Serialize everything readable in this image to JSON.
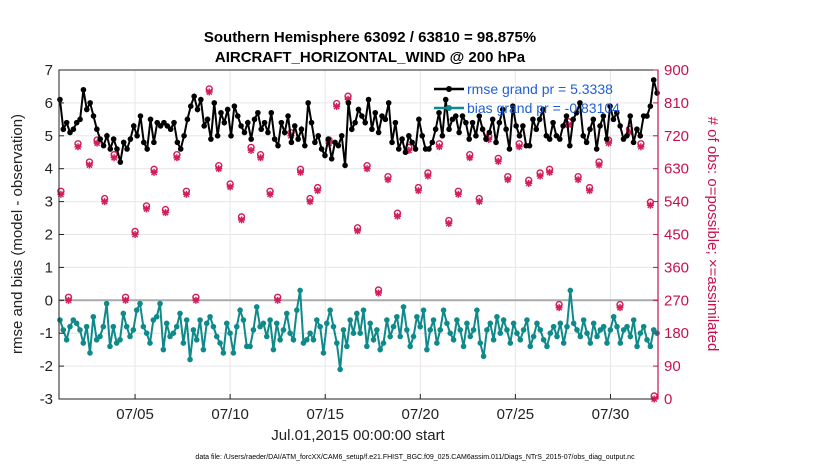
{
  "chart_data": {
    "type": "line",
    "title": "Southern Hemisphere 63092 / 63810 = 98.875%",
    "subtitle": "AIRCRAFT_HORIZONTAL_WIND @ 200 hPa",
    "xlabel": "Jul.01,2015 00:00:00 start",
    "ylabel": "rmse and bias (model - observation)",
    "y2label": "# of obs: o=possible; ×=assimilated",
    "footer": "data file: /Users/raeder/DAI/ATM_forcXX/CAM6_setup/f.e21.FHIST_BGC.f09_025.CAM6assim.011/Diags_NTrS_2015-07/obs_diag_output.nc",
    "xlim": [
      1,
      32.5
    ],
    "ylim": [
      -3,
      7
    ],
    "y2lim": [
      0,
      900
    ],
    "x_ticks": [
      5,
      10,
      15,
      20,
      25,
      30
    ],
    "x_tick_labels": [
      "07/05",
      "07/10",
      "07/15",
      "07/20",
      "07/25",
      "07/30"
    ],
    "y_ticks": [
      -3,
      -2,
      -1,
      0,
      1,
      2,
      3,
      4,
      5,
      6,
      7
    ],
    "y2_ticks": [
      0,
      90,
      180,
      270,
      360,
      450,
      540,
      630,
      720,
      810,
      900
    ],
    "grid": true,
    "legend_position": "top-right",
    "zero_line": 0,
    "colors": {
      "rmse": "#000000",
      "bias": "#0f8a8a",
      "obs": "#d21e5a",
      "axis_right": "#c8104e",
      "legend_text": "#1f5fd6",
      "zero": "#aaaaaa"
    },
    "series": [
      {
        "name": "rmse grand pr = 5.3338",
        "key": "rmse",
        "values": [
          6.1,
          5.2,
          5.4,
          5.1,
          5.2,
          5.4,
          5.5,
          6.4,
          5.8,
          6.0,
          5.6,
          5.2,
          4.9,
          4.7,
          5.0,
          4.6,
          4.9,
          4.6,
          4.2,
          4.8,
          4.6,
          4.9,
          5.3,
          5.0,
          5.6,
          4.8,
          4.6,
          5.5,
          4.8,
          5.4,
          5.3,
          5.4,
          5.3,
          5.2,
          5.4,
          4.8,
          4.6,
          5.0,
          5.5,
          5.9,
          6.2,
          5.8,
          6.1,
          5.3,
          5.5,
          4.9,
          6.0,
          5.0,
          5.7,
          5.4,
          5.8,
          5.0,
          5.9,
          5.6,
          5.3,
          5.1,
          5.4,
          4.9,
          5.5,
          5.7,
          5.2,
          5.4,
          5.1,
          5.7,
          4.9,
          4.7,
          5.4,
          5.1,
          5.6,
          4.8,
          5.3,
          4.9,
          5.2,
          4.7,
          6.0,
          5.4,
          4.8,
          5.0,
          4.6,
          4.4,
          4.9,
          4.3,
          4.8,
          4.7,
          5.0,
          4.1,
          6.0,
          5.2,
          5.4,
          5.8,
          5.6,
          5.4,
          6.1,
          5.2,
          5.7,
          5.1,
          5.6,
          5.5,
          6.0,
          4.8,
          5.4,
          4.6,
          4.9,
          4.5,
          5.0,
          4.8,
          4.6,
          5.5,
          5.0,
          4.6,
          4.6,
          4.8,
          5.2,
          5.7,
          5.0,
          6.1,
          5.2,
          5.5,
          5.6,
          5.1,
          5.6,
          5.4,
          4.9,
          5.4,
          5.0,
          5.6,
          5.2,
          4.9,
          5.1,
          5.5,
          4.8,
          5.4,
          5.8,
          5.2,
          4.6,
          5.9,
          5.3,
          5.0,
          5.3,
          4.7,
          4.7,
          5.5,
          5.2,
          5.5,
          5.8,
          5.0,
          4.9,
          5.4,
          5.0,
          4.9,
          5.3,
          5.6,
          4.7,
          5.5,
          5.7,
          6.0,
          5.0,
          4.8,
          5.2,
          5.5,
          4.6,
          5.3,
          5.6,
          4.9,
          5.9,
          5.5,
          5.7,
          5.3,
          4.9,
          5.0,
          5.6,
          4.8,
          5.2,
          5.0,
          5.6,
          5.6,
          5.9,
          6.7,
          6.3
        ]
      },
      {
        "name": "bias grand pr = -0.83104",
        "key": "bias",
        "values": [
          -0.6,
          -0.9,
          -1.2,
          -0.8,
          -0.6,
          -0.7,
          -0.9,
          -1.3,
          -0.8,
          -1.6,
          -0.5,
          -1.2,
          -1.1,
          -0.8,
          -0.1,
          -1.4,
          -0.8,
          -1.3,
          -1.2,
          -0.4,
          -0.8,
          -1.1,
          -0.9,
          -0.3,
          -0.1,
          -0.8,
          -1.0,
          -1.3,
          -0.6,
          -0.5,
          -0.1,
          -1.5,
          -0.7,
          -1.1,
          -1.0,
          -0.8,
          -0.4,
          -1.3,
          -0.6,
          -1.8,
          -0.9,
          -1.2,
          -0.6,
          -1.5,
          -0.7,
          -0.5,
          -0.8,
          -1.1,
          -1.3,
          -1.6,
          -0.7,
          -1.0,
          -1.6,
          -0.8,
          -0.3,
          -0.6,
          -1.4,
          -1.4,
          -0.9,
          -0.2,
          -0.8,
          -0.7,
          -1.1,
          -0.6,
          -1.5,
          -0.7,
          -1.2,
          -0.9,
          -0.4,
          -1.0,
          -1.2,
          -0.3,
          0.3,
          -1.3,
          -1.2,
          -1.0,
          -1.2,
          -0.6,
          -0.8,
          -1.6,
          -0.7,
          -0.3,
          -0.8,
          -1.3,
          -2.1,
          -0.9,
          -1.4,
          -0.6,
          -1.0,
          -0.4,
          -1.0,
          -0.3,
          -1.4,
          -0.7,
          -1.2,
          -0.9,
          -1.5,
          -1.3,
          -0.6,
          -1.1,
          -0.8,
          -0.5,
          -1.1,
          -0.2,
          -0.9,
          -1.4,
          -1.1,
          -0.5,
          -0.8,
          -0.3,
          -1.5,
          -0.9,
          -0.6,
          -1.3,
          -0.9,
          -0.3,
          -0.7,
          -1.0,
          -1.2,
          -0.6,
          -0.9,
          -1.4,
          -0.7,
          -1.1,
          -0.9,
          -0.3,
          -1.3,
          -1.7,
          -0.9,
          -0.7,
          -1.2,
          -0.5,
          -1.0,
          -0.6,
          -0.9,
          -1.3,
          -0.7,
          -1.0,
          -1.2,
          -0.9,
          -0.6,
          -1.4,
          -1.1,
          -0.7,
          -0.9,
          -1.2,
          -1.4,
          -1.0,
          -0.8,
          -1.1,
          -0.7,
          -1.3,
          -0.8,
          0.3,
          -0.7,
          -0.9,
          -1.1,
          -0.6,
          -1.0,
          -1.3,
          -0.7,
          -1.1,
          -0.9,
          -0.8,
          -1.3,
          -0.9,
          -0.5,
          -0.8,
          -1.3,
          -0.9,
          -0.8,
          -1.1,
          -0.6,
          -1.4,
          -1.0,
          -0.8,
          -1.2,
          -1.4,
          -0.9,
          -1.0
        ]
      },
      {
        "name": "obs possible",
        "key": "possible",
        "x": [
          1.1,
          1.5,
          2.0,
          2.6,
          3.0,
          3.4,
          3.9,
          4.5,
          5.0,
          5.6,
          6.0,
          6.6,
          7.2,
          7.7,
          8.2,
          8.9,
          9.4,
          10.0,
          10.6,
          11.1,
          11.6,
          12.1,
          12.5,
          13.2,
          13.7,
          14.2,
          14.6,
          15.2,
          15.6,
          16.2,
          16.7,
          17.2,
          17.8,
          18.3,
          18.8,
          19.4,
          19.9,
          20.4,
          21.0,
          21.5,
          22.0,
          22.6,
          23.1,
          23.6,
          24.1,
          24.6,
          25.2,
          25.7,
          26.3,
          26.8,
          27.3,
          27.8,
          28.3,
          28.9,
          29.4,
          29.9,
          30.5,
          31.0,
          31.6,
          32.1,
          32.3
        ],
        "values": [
          560,
          270,
          690,
          640,
          700,
          540,
          660,
          270,
          450,
          520,
          620,
          510,
          660,
          560,
          270,
          840,
          630,
          580,
          490,
          680,
          660,
          560,
          270,
          720,
          620,
          540,
          570,
          700,
          800,
          820,
          460,
          630,
          290,
          600,
          500,
          680,
          570,
          610,
          690,
          480,
          560,
          660,
          540,
          710,
          650,
          600,
          690,
          590,
          610,
          620,
          250,
          750,
          600,
          570,
          640,
          700,
          250,
          730,
          690,
          530,
          0
        ]
      },
      {
        "name": "obs assimilated",
        "key": "assimilated",
        "x": [
          1.1,
          1.5,
          2.0,
          2.6,
          3.0,
          3.4,
          3.9,
          4.5,
          5.0,
          5.6,
          6.0,
          6.6,
          7.2,
          7.7,
          8.2,
          8.9,
          9.4,
          10.0,
          10.6,
          11.1,
          11.6,
          12.1,
          12.5,
          13.2,
          13.7,
          14.2,
          14.6,
          15.2,
          15.6,
          16.2,
          16.7,
          17.2,
          17.8,
          18.3,
          18.8,
          19.4,
          19.9,
          20.4,
          21.0,
          21.5,
          22.0,
          22.6,
          23.1,
          23.6,
          24.1,
          24.6,
          25.2,
          25.7,
          26.3,
          26.8,
          27.3,
          27.8,
          28.3,
          28.9,
          29.4,
          29.9,
          30.5,
          31.0,
          31.6,
          32.1,
          32.3
        ],
        "values": [
          560,
          270,
          690,
          640,
          700,
          540,
          660,
          270,
          450,
          520,
          620,
          510,
          660,
          560,
          270,
          840,
          630,
          580,
          490,
          680,
          660,
          560,
          270,
          720,
          620,
          540,
          570,
          700,
          800,
          820,
          460,
          630,
          290,
          600,
          500,
          680,
          570,
          610,
          690,
          480,
          560,
          660,
          540,
          710,
          650,
          600,
          690,
          590,
          610,
          620,
          250,
          750,
          600,
          570,
          640,
          700,
          250,
          730,
          690,
          530,
          0
        ]
      }
    ]
  }
}
